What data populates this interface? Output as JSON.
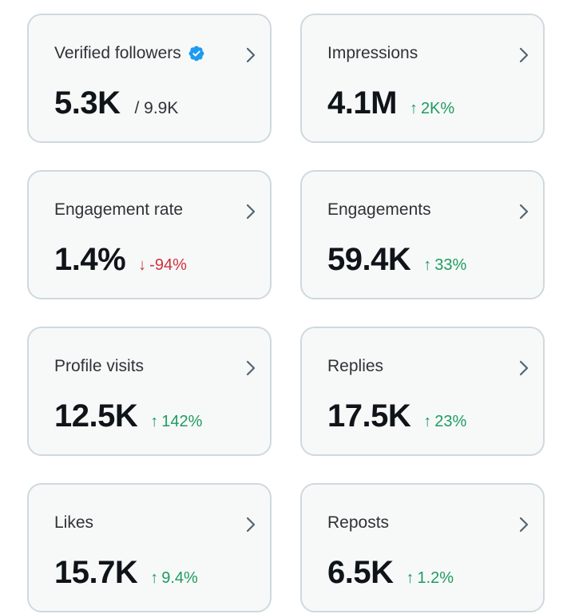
{
  "colors": {
    "card_bg": "#f7f9f9",
    "card_border": "#cfd9de",
    "positive": "#1f9b5f",
    "negative": "#d0313d",
    "verified_badge": "#1d9bf0",
    "chevron": "#536471"
  },
  "cards": [
    {
      "title": "Verified followers",
      "value": "5.3K",
      "sub": "/ 9.9K",
      "icons": [
        "verified-badge-icon",
        "chevron-right-icon"
      ]
    },
    {
      "title": "Impressions",
      "value": "4.1M",
      "delta": "2K%",
      "direction": "up",
      "arrow": "↑"
    },
    {
      "title": "Engagement rate",
      "value": "1.4%",
      "delta": "-94%",
      "direction": "down",
      "arrow": "↓"
    },
    {
      "title": "Engagements",
      "value": "59.4K",
      "delta": "33%",
      "direction": "up",
      "arrow": "↑"
    },
    {
      "title": "Profile visits",
      "value": "12.5K",
      "delta": "142%",
      "direction": "up",
      "arrow": "↑"
    },
    {
      "title": "Replies",
      "value": "17.5K",
      "delta": "23%",
      "direction": "up",
      "arrow": "↑"
    },
    {
      "title": "Likes",
      "value": "15.7K",
      "delta": "9.4%",
      "direction": "up",
      "arrow": "↑"
    },
    {
      "title": "Reposts",
      "value": "6.5K",
      "delta": "1.2%",
      "direction": "up",
      "arrow": "↑"
    }
  ]
}
